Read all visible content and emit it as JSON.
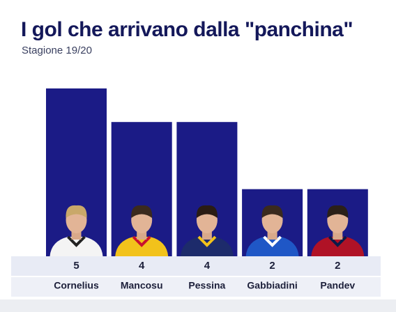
{
  "chart_data": {
    "type": "bar",
    "title": "I gol che arrivano dalla \"panchina\"",
    "subtitle": "Stagione 19/20",
    "categories": [
      "Cornelius",
      "Mancosu",
      "Pessina",
      "Gabbiadini",
      "Pandev"
    ],
    "values": [
      5,
      4,
      4,
      2,
      2
    ],
    "color": "#1b1b86"
  }
}
